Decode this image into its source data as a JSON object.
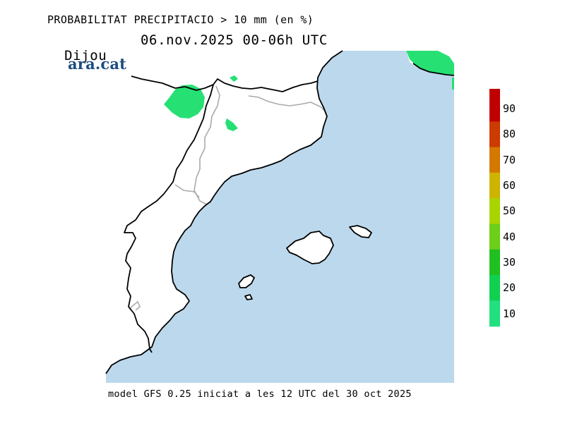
{
  "header": {
    "title": "PROBABILITAT PRECIPITACIO > 10 mm (en %)",
    "day": "Dijous",
    "date_range": "06.nov.2025 00-06h UTC"
  },
  "logo": {
    "text": "ara.cat"
  },
  "footer": {
    "text": "model GFS 0.25 iniciat a les 12 UTC del 30 oct 2025"
  },
  "colorbar": {
    "labels": [
      "90",
      "80",
      "70",
      "60",
      "50",
      "40",
      "30",
      "20",
      "10"
    ],
    "colors": [
      "#c00000",
      "#cc3b00",
      "#d47800",
      "#ccb400",
      "#a8d400",
      "#6ccf18",
      "#20c020",
      "#10d050",
      "#20e080"
    ]
  },
  "map": {
    "sea_color": "#bcd8ec",
    "land_color": "#ffffff",
    "precip_color": "#26e073",
    "border_color": "#aaaaaa",
    "coast_color": "#000000"
  }
}
